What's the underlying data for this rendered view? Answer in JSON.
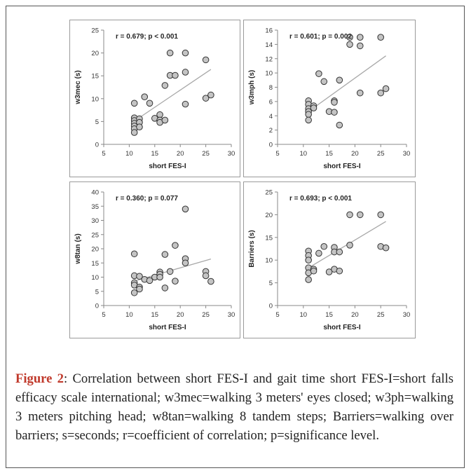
{
  "figure": {
    "caption_label": "Figure 2",
    "caption_text": ": Correlation between short FES-I and gait time short FES-I=short falls efficacy scale international; w3mec=walking 3 meters' eyes closed; w3ph=walking 3 meters pitching head; w8tan=walking 8 tandem steps; Barriers=walking over barriers; s=seconds; r=coefficient of correlation; p=significance level."
  },
  "chart_data": [
    {
      "type": "scatter",
      "annotation": "r = 0.679; p < 0.001",
      "xlabel": "short FES-I",
      "ylabel": "w3mec (s)",
      "xlim": [
        5,
        30
      ],
      "ylim": [
        0,
        25
      ],
      "xticks": [
        5,
        10,
        15,
        20,
        25,
        30
      ],
      "yticks": [
        0,
        5,
        10,
        15,
        20,
        25
      ],
      "points": [
        [
          11,
          9.0
        ],
        [
          11,
          5.8
        ],
        [
          11,
          5.2
        ],
        [
          11,
          4.6
        ],
        [
          11,
          4.0
        ],
        [
          11,
          3.4
        ],
        [
          11,
          2.6
        ],
        [
          12,
          5.6
        ],
        [
          12,
          4.8
        ],
        [
          12,
          3.8
        ],
        [
          13,
          10.4
        ],
        [
          14,
          9.0
        ],
        [
          15,
          5.7
        ],
        [
          16,
          6.5
        ],
        [
          16,
          5.3
        ],
        [
          16,
          4.8
        ],
        [
          17,
          12.9
        ],
        [
          17,
          5.3
        ],
        [
          18,
          15.1
        ],
        [
          18,
          20.0
        ],
        [
          19,
          15.1
        ],
        [
          21,
          20.0
        ],
        [
          21,
          15.8
        ],
        [
          21,
          8.8
        ],
        [
          25,
          18.5
        ],
        [
          25,
          10.1
        ],
        [
          26,
          10.8
        ]
      ],
      "trendline": [
        [
          11,
          5.1
        ],
        [
          26,
          16.4
        ]
      ]
    },
    {
      "type": "scatter",
      "annotation": "r = 0.601; p = 0.002",
      "xlabel": "short FES-I",
      "ylabel": "w3mph (s)",
      "xlim": [
        5,
        30
      ],
      "ylim": [
        0,
        16
      ],
      "xticks": [
        5,
        10,
        15,
        20,
        25,
        30
      ],
      "yticks": [
        0,
        2,
        4,
        6,
        8,
        10,
        12,
        14,
        16
      ],
      "points": [
        [
          11,
          6.1
        ],
        [
          11,
          5.6
        ],
        [
          11,
          5.0
        ],
        [
          11,
          4.6
        ],
        [
          11,
          4.2
        ],
        [
          11,
          3.4
        ],
        [
          12,
          5.4
        ],
        [
          12,
          5.1
        ],
        [
          13,
          9.9
        ],
        [
          14,
          8.8
        ],
        [
          15,
          4.6
        ],
        [
          16,
          6.1
        ],
        [
          16,
          5.9
        ],
        [
          16,
          4.5
        ],
        [
          17,
          9.0
        ],
        [
          17,
          2.7
        ],
        [
          19,
          15.0
        ],
        [
          19,
          14.0
        ],
        [
          21,
          15.0
        ],
        [
          21,
          13.8
        ],
        [
          21,
          7.2
        ],
        [
          25,
          15.0
        ],
        [
          25,
          7.2
        ],
        [
          26,
          7.8
        ]
      ],
      "trendline": [
        [
          11,
          4.6
        ],
        [
          26,
          12.4
        ]
      ]
    },
    {
      "type": "scatter",
      "annotation": "r = 0.360; p = 0.077",
      "xlabel": "short FES-I",
      "ylabel": "w8tan (s)",
      "xlim": [
        5,
        30
      ],
      "ylim": [
        0,
        40
      ],
      "xticks": [
        5,
        10,
        15,
        20,
        25,
        30
      ],
      "yticks": [
        0,
        5,
        10,
        15,
        20,
        25,
        30,
        35,
        40
      ],
      "points": [
        [
          11,
          18.2
        ],
        [
          11,
          10.5
        ],
        [
          11,
          8.0
        ],
        [
          11,
          7.2
        ],
        [
          11,
          4.5
        ],
        [
          12,
          10.3
        ],
        [
          12,
          6.5
        ],
        [
          12,
          5.8
        ],
        [
          13,
          9.2
        ],
        [
          14,
          8.8
        ],
        [
          15,
          10.0
        ],
        [
          16,
          11.8
        ],
        [
          16,
          11.0
        ],
        [
          16,
          10.0
        ],
        [
          17,
          18.0
        ],
        [
          17,
          6.2
        ],
        [
          18,
          12.0
        ],
        [
          19,
          21.2
        ],
        [
          19,
          8.6
        ],
        [
          21,
          34.0
        ],
        [
          21,
          16.5
        ],
        [
          21,
          15.0
        ],
        [
          25,
          12.0
        ],
        [
          25,
          10.5
        ],
        [
          26,
          8.5
        ]
      ],
      "trendline": [
        [
          11,
          8.6
        ],
        [
          26,
          16.4
        ]
      ]
    },
    {
      "type": "scatter",
      "annotation": "r = 0.693; p < 0.001",
      "xlabel": "short FES-I",
      "ylabel": "Barriers (s)",
      "xlim": [
        5,
        30
      ],
      "ylim": [
        0,
        25
      ],
      "xticks": [
        5,
        10,
        15,
        20,
        25,
        30
      ],
      "yticks": [
        0,
        5,
        10,
        15,
        20,
        25
      ],
      "points": [
        [
          11,
          12.0
        ],
        [
          11,
          11.0
        ],
        [
          11,
          10.0
        ],
        [
          11,
          8.3
        ],
        [
          11,
          7.2
        ],
        [
          11,
          5.7
        ],
        [
          12,
          8.0
        ],
        [
          12,
          7.6
        ],
        [
          13,
          11.5
        ],
        [
          14,
          13.0
        ],
        [
          15,
          7.4
        ],
        [
          16,
          12.8
        ],
        [
          16,
          11.8
        ],
        [
          16,
          8.0
        ],
        [
          17,
          11.8
        ],
        [
          17,
          7.6
        ],
        [
          19,
          20.0
        ],
        [
          19,
          13.3
        ],
        [
          21,
          20.0
        ],
        [
          25,
          20.0
        ],
        [
          25,
          13.0
        ],
        [
          26,
          12.7
        ]
      ],
      "trendline": [
        [
          11,
          8.3
        ],
        [
          26,
          18.5
        ]
      ]
    }
  ]
}
